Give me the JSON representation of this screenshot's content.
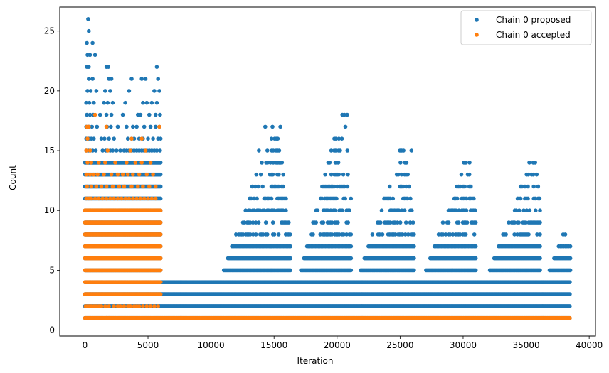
{
  "chart_data": {
    "type": "scatter",
    "title": "",
    "xlabel": "Iteration",
    "ylabel": "Count",
    "xlim": [
      -2000,
      40500
    ],
    "ylim": [
      -0.5,
      27
    ],
    "xticks": [
      0,
      5000,
      10000,
      15000,
      20000,
      25000,
      30000,
      35000,
      40000
    ],
    "yticks": [
      0,
      5,
      10,
      15,
      20,
      25
    ],
    "grid": false,
    "legend_position": "top-right",
    "series": [
      {
        "name": "Chain 0 proposed",
        "color": "#1f77b4",
        "bands": [
          {
            "y": 1,
            "x_from": 0,
            "x_to": 38500
          },
          {
            "y": 2,
            "x_from": 0,
            "x_to": 38500
          },
          {
            "y": 3,
            "x_from": 0,
            "x_to": 38500
          },
          {
            "y": 4,
            "x_from": 0,
            "x_to": 38500
          },
          {
            "y": 5,
            "x_from": 0,
            "x_to": 6000
          },
          {
            "y": 6,
            "x_from": 0,
            "x_to": 6000
          },
          {
            "y": 7,
            "x_from": 0,
            "x_to": 6000
          },
          {
            "y": 8,
            "x_from": 0,
            "x_to": 6000
          },
          {
            "y": 9,
            "x_from": 0,
            "x_to": 6000
          },
          {
            "y": 10,
            "x_from": 0,
            "x_to": 6000
          },
          {
            "y": 11,
            "x_from": 0,
            "x_to": 6000
          },
          {
            "y": 12,
            "x_from": 0,
            "x_to": 6000
          },
          {
            "y": 13,
            "x_from": 0,
            "x_to": 6000
          },
          {
            "y": 14,
            "x_from": 0,
            "x_to": 6000
          }
        ],
        "peaks": [
          {
            "center": 15200,
            "start": 10300,
            "end": 16300,
            "max_y": 17
          },
          {
            "center": 20500,
            "start": 16300,
            "end": 21100,
            "max_y": 18
          },
          {
            "center": 25300,
            "start": 21100,
            "end": 26100,
            "max_y": 15
          },
          {
            "center": 30400,
            "start": 26100,
            "end": 31000,
            "max_y": 14
          },
          {
            "center": 35600,
            "start": 31000,
            "end": 36100,
            "max_y": 14
          },
          {
            "center": 38300,
            "start": 36100,
            "end": 38500,
            "max_y": 8
          }
        ],
        "points": [
          [
            250,
            26
          ],
          [
            300,
            25
          ],
          [
            150,
            24
          ],
          [
            600,
            24
          ],
          [
            200,
            23
          ],
          [
            400,
            23
          ],
          [
            800,
            23
          ],
          [
            150,
            22
          ],
          [
            300,
            22
          ],
          [
            1700,
            22
          ],
          [
            1850,
            22
          ],
          [
            5700,
            22
          ],
          [
            300,
            21
          ],
          [
            600,
            21
          ],
          [
            1900,
            21
          ],
          [
            2100,
            21
          ],
          [
            3700,
            21
          ],
          [
            4500,
            21
          ],
          [
            4800,
            21
          ],
          [
            5800,
            21
          ],
          [
            200,
            20
          ],
          [
            450,
            20
          ],
          [
            900,
            20
          ],
          [
            1600,
            20
          ],
          [
            2000,
            20
          ],
          [
            3500,
            20
          ],
          [
            5500,
            20
          ],
          [
            5900,
            20
          ],
          [
            100,
            19
          ],
          [
            350,
            19
          ],
          [
            700,
            19
          ],
          [
            1500,
            19
          ],
          [
            1800,
            19
          ],
          [
            2200,
            19
          ],
          [
            3200,
            19
          ],
          [
            4600,
            19
          ],
          [
            4900,
            19
          ],
          [
            5300,
            19
          ],
          [
            5700,
            19
          ],
          [
            150,
            18
          ],
          [
            400,
            18
          ],
          [
            650,
            18
          ],
          [
            1200,
            18
          ],
          [
            1700,
            18
          ],
          [
            2100,
            18
          ],
          [
            3000,
            18
          ],
          [
            4200,
            18
          ],
          [
            4400,
            18
          ],
          [
            5100,
            18
          ],
          [
            5600,
            18
          ],
          [
            5950,
            18
          ],
          [
            100,
            17
          ],
          [
            300,
            17
          ],
          [
            550,
            17
          ],
          [
            950,
            17
          ],
          [
            1750,
            17
          ],
          [
            2050,
            17
          ],
          [
            2600,
            17
          ],
          [
            3300,
            17
          ],
          [
            3800,
            17
          ],
          [
            4100,
            17
          ],
          [
            4700,
            17
          ],
          [
            5200,
            17
          ],
          [
            5600,
            17
          ],
          [
            5900,
            17
          ],
          [
            100,
            16
          ],
          [
            300,
            16
          ],
          [
            500,
            16
          ],
          [
            700,
            16
          ],
          [
            1300,
            16
          ],
          [
            1550,
            16
          ],
          [
            1900,
            16
          ],
          [
            2300,
            16
          ],
          [
            3400,
            16
          ],
          [
            3700,
            16
          ],
          [
            3900,
            16
          ],
          [
            4300,
            16
          ],
          [
            4600,
            16
          ],
          [
            5000,
            16
          ],
          [
            5400,
            16
          ],
          [
            5800,
            16
          ],
          [
            6000,
            16
          ],
          [
            100,
            15
          ],
          [
            250,
            15
          ],
          [
            400,
            15
          ],
          [
            600,
            15
          ],
          [
            850,
            15
          ],
          [
            1400,
            15
          ],
          [
            1650,
            15
          ],
          [
            2000,
            15
          ],
          [
            2200,
            15
          ],
          [
            2500,
            15
          ],
          [
            2800,
            15
          ],
          [
            3100,
            15
          ],
          [
            3300,
            15
          ],
          [
            3500,
            15
          ],
          [
            3700,
            15
          ],
          [
            3900,
            15
          ],
          [
            4100,
            15
          ],
          [
            4300,
            15
          ],
          [
            4500,
            15
          ],
          [
            4700,
            15
          ],
          [
            4900,
            15
          ],
          [
            5100,
            15
          ],
          [
            5300,
            15
          ],
          [
            5500,
            15
          ],
          [
            5700,
            15
          ],
          [
            5950,
            15
          ],
          [
            20800,
            18
          ],
          [
            14300,
            17
          ],
          [
            15500,
            17
          ],
          [
            13800,
            15
          ],
          [
            25900,
            15
          ]
        ]
      },
      {
        "name": "Chain 0 accepted",
        "color": "#ff7f0e",
        "bands": [
          {
            "y": 1,
            "x_from": 0,
            "x_to": 38500
          },
          {
            "y": 3,
            "x_from": 0,
            "x_to": 6000
          },
          {
            "y": 4,
            "x_from": 0,
            "x_to": 6000
          },
          {
            "y": 5,
            "x_from": 0,
            "x_to": 6000
          },
          {
            "y": 6,
            "x_from": 0,
            "x_to": 6000
          },
          {
            "y": 7,
            "x_from": 0,
            "x_to": 6000
          },
          {
            "y": 8,
            "x_from": 0,
            "x_to": 6000
          },
          {
            "y": 9,
            "x_from": 0,
            "x_to": 6000
          },
          {
            "y": 10,
            "x_from": 0,
            "x_to": 6000
          }
        ],
        "points": [
          [
            50,
            2
          ],
          [
            200,
            2
          ],
          [
            350,
            2
          ],
          [
            500,
            2
          ],
          [
            700,
            2
          ],
          [
            900,
            2
          ],
          [
            1100,
            2
          ],
          [
            1300,
            2
          ],
          [
            1600,
            2
          ],
          [
            1900,
            2
          ],
          [
            2300,
            2
          ],
          [
            2600,
            2
          ],
          [
            2800,
            2
          ],
          [
            3100,
            2
          ],
          [
            3400,
            2
          ],
          [
            3600,
            2
          ],
          [
            3900,
            2
          ],
          [
            4100,
            2
          ],
          [
            4300,
            2
          ],
          [
            4600,
            2
          ],
          [
            4900,
            2
          ],
          [
            5200,
            2
          ],
          [
            5500,
            2
          ],
          [
            5800,
            2
          ],
          [
            1700,
            1
          ],
          [
            1900,
            1
          ],
          [
            100,
            11
          ],
          [
            300,
            11
          ],
          [
            500,
            11
          ],
          [
            800,
            11
          ],
          [
            1100,
            11
          ],
          [
            1400,
            11
          ],
          [
            1700,
            11
          ],
          [
            2000,
            11
          ],
          [
            2300,
            11
          ],
          [
            2600,
            11
          ],
          [
            2900,
            11
          ],
          [
            3200,
            11
          ],
          [
            3500,
            11
          ],
          [
            3800,
            11
          ],
          [
            4100,
            11
          ],
          [
            4400,
            11
          ],
          [
            4700,
            11
          ],
          [
            5000,
            11
          ],
          [
            5300,
            11
          ],
          [
            5600,
            11
          ],
          [
            150,
            12
          ],
          [
            500,
            12
          ],
          [
            900,
            12
          ],
          [
            1300,
            12
          ],
          [
            1700,
            12
          ],
          [
            2200,
            12
          ],
          [
            2700,
            12
          ],
          [
            3100,
            12
          ],
          [
            3700,
            12
          ],
          [
            4200,
            12
          ],
          [
            4600,
            12
          ],
          [
            5100,
            12
          ],
          [
            5600,
            12
          ],
          [
            100,
            13
          ],
          [
            400,
            13
          ],
          [
            700,
            13
          ],
          [
            1000,
            13
          ],
          [
            1500,
            13
          ],
          [
            2100,
            13
          ],
          [
            2600,
            13
          ],
          [
            3000,
            13
          ],
          [
            3400,
            13
          ],
          [
            3800,
            13
          ],
          [
            4300,
            13
          ],
          [
            4900,
            13
          ],
          [
            5400,
            13
          ],
          [
            200,
            14
          ],
          [
            500,
            14
          ],
          [
            1100,
            14
          ],
          [
            1600,
            14
          ],
          [
            2400,
            14
          ],
          [
            3300,
            14
          ],
          [
            4000,
            14
          ],
          [
            4500,
            14
          ],
          [
            5200,
            14
          ],
          [
            100,
            15
          ],
          [
            400,
            15
          ],
          [
            1800,
            15
          ],
          [
            3600,
            15
          ],
          [
            4800,
            15
          ],
          [
            200,
            16
          ],
          [
            3700,
            16
          ],
          [
            4500,
            16
          ],
          [
            150,
            17
          ],
          [
            300,
            17
          ],
          [
            1700,
            17
          ],
          [
            5900,
            17
          ],
          [
            800,
            18
          ]
        ]
      }
    ]
  }
}
